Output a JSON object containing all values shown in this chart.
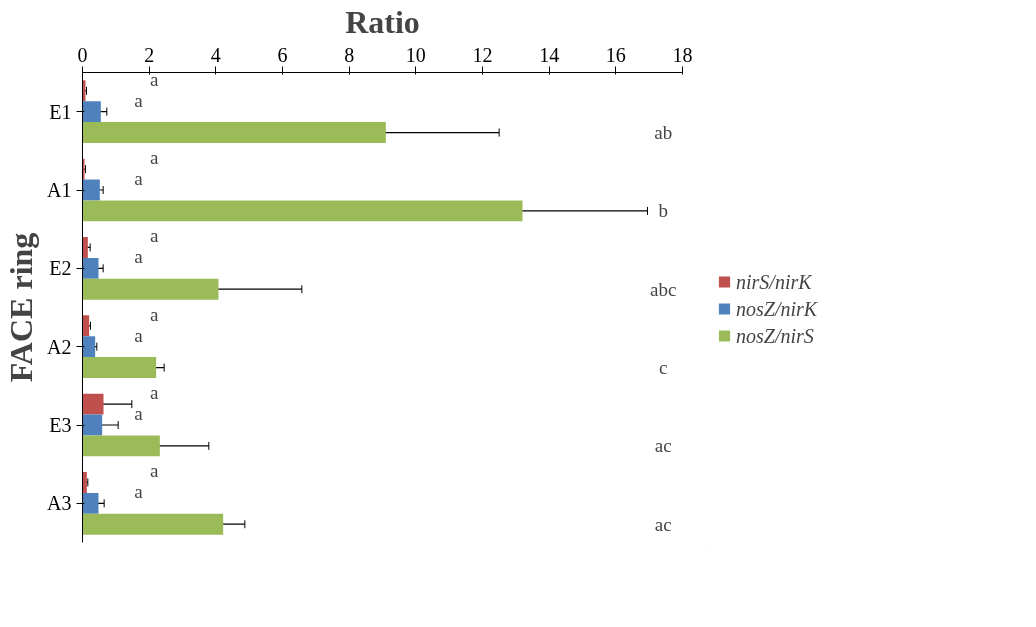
{
  "chart_data": {
    "type": "bar",
    "orientation": "horizontal",
    "xlabel": "Ratio",
    "ylabel": "FACE ring",
    "categories": [
      "E1",
      "A1",
      "E2",
      "A2",
      "E3",
      "A3"
    ],
    "series": [
      {
        "name": "nirS/nirK",
        "color": "#c0504d",
        "values": [
          0.09,
          0.06,
          0.16,
          0.2,
          0.63,
          0.13
        ],
        "errors": [
          0.03,
          0.03,
          0.07,
          0.04,
          0.85,
          0.03
        ]
      },
      {
        "name": "nosZ/nirK",
        "color": "#4f81bd",
        "values": [
          0.55,
          0.52,
          0.48,
          0.38,
          0.59,
          0.48
        ],
        "errors": [
          0.18,
          0.1,
          0.14,
          0.05,
          0.48,
          0.17
        ]
      },
      {
        "name": "nosZ/nirS",
        "color": "#9bbb59",
        "values": [
          9.1,
          13.2,
          4.08,
          2.21,
          2.32,
          4.22
        ],
        "errors": [
          3.4,
          3.75,
          2.5,
          0.24,
          1.47,
          0.65
        ]
      }
    ],
    "xlim": [
      0,
      18
    ],
    "xticks": [
      0,
      2,
      4,
      6,
      8,
      10,
      12,
      14,
      16,
      18
    ],
    "grid": false,
    "legend": "right",
    "annotations": [
      "a",
      "a",
      "ab",
      "a",
      "a",
      "b",
      "a",
      "a",
      "abc",
      "a",
      "a",
      "c",
      "a",
      "a",
      "ac",
      "a",
      "a",
      "ac"
    ]
  }
}
